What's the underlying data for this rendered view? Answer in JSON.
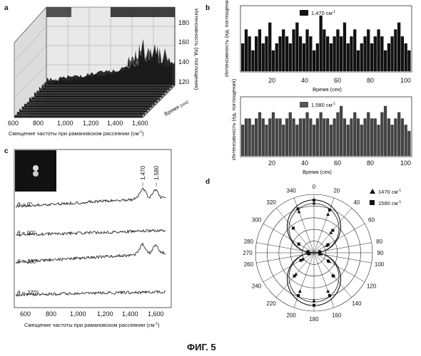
{
  "figure": {
    "caption": "ФИГ. 5",
    "panels": [
      "a",
      "b",
      "c",
      "d"
    ]
  },
  "panel_a": {
    "xlabel": "Смещение частоты при рамановском рассеянии (см",
    "xlabel_sup": "-1",
    "xlabel_end": ")",
    "xticks": [
      "600",
      "800",
      "1,000",
      "1,200",
      "1,400",
      "1,600"
    ],
    "zlabel": "Интенсивность (ед. поглощения)",
    "zticks": [
      "180",
      "160",
      "140",
      "120"
    ],
    "time_label": "Время",
    "time_unit": "(сек)"
  },
  "panel_b": {
    "ylabel": "Интенсивность (ед. поглощения)",
    "xlabel": "Время (сек)",
    "xticks": [
      "20",
      "40",
      "60",
      "80",
      "100"
    ],
    "legend_top": "1,470 см",
    "legend_bottom": "1,580 см",
    "legend_sup": "-1"
  },
  "panel_c": {
    "xlabel": "Смещение частоты при рамановском рассеянии (см",
    "xlabel_sup": "-1",
    "xlabel_end": ")",
    "xticks": [
      "600",
      "800",
      "1,000",
      "1,200",
      "1,400",
      "1,600"
    ],
    "peak_1": "1,470",
    "peak_2": "1,580",
    "angle_labels": [
      "θ = 0°",
      "θ = 90°",
      "θ = 180°",
      "θ = 270°"
    ]
  },
  "panel_d": {
    "legend_1470": "1470 см",
    "legend_1580": "1580 см",
    "legend_sup": "-1",
    "angle_ticks": [
      "0",
      "20",
      "40",
      "60",
      "80",
      "90",
      "100",
      "120",
      "140",
      "160",
      "180",
      "200",
      "220",
      "240",
      "260",
      "270",
      "280",
      "300",
      "320",
      "340"
    ]
  },
  "chart_data": [
    {
      "panel": "a",
      "type": "area",
      "title": "",
      "xlabel": "Смещение частоты при рамановском рассеянии (см-1)",
      "ylabel": "Время (сек)",
      "zlabel": "Интенсивность (ед. поглощения)",
      "xlim": [
        560,
        1680
      ],
      "zlim": [
        100,
        190
      ]
    },
    {
      "panel": "b",
      "type": "bar",
      "series": [
        {
          "name": "1,470 см-1",
          "values": [
            4,
            6,
            5,
            3,
            5,
            6,
            4,
            5,
            7,
            3,
            4,
            5,
            6,
            5,
            4,
            6,
            7,
            5,
            4,
            6,
            5,
            3,
            4,
            8,
            6,
            5,
            4,
            5,
            6,
            5,
            7,
            4,
            5,
            6,
            3,
            4,
            5,
            6,
            4,
            5,
            6,
            5,
            3,
            4,
            5,
            6,
            7,
            5,
            4,
            3
          ]
        },
        {
          "name": "1,580 см-1",
          "values": [
            5,
            6,
            6,
            5,
            6,
            7,
            6,
            5,
            6,
            7,
            6,
            6,
            5,
            6,
            7,
            6,
            5,
            6,
            6,
            7,
            6,
            5,
            6,
            7,
            6,
            6,
            5,
            6,
            7,
            8,
            6,
            5,
            6,
            7,
            6,
            5,
            6,
            7,
            6,
            6,
            5,
            7,
            8,
            6,
            5,
            6,
            7,
            6,
            5,
            4
          ]
        }
      ],
      "xlabel": "Время (сек)",
      "ylabel": "Интенсивность (ед. поглощения)",
      "xlim": [
        0,
        100
      ]
    },
    {
      "panel": "c",
      "type": "line",
      "xlabel": "Смещение частоты при рамановском рассеянии (см-1)",
      "xlim": [
        500,
        1700
      ],
      "series_names": [
        "θ = 0°",
        "θ = 90°",
        "θ = 180°",
        "θ = 270°"
      ]
    },
    {
      "panel": "d",
      "type": "scatter",
      "series": [
        {
          "name": "1470 см-1",
          "angles": [
            0,
            20,
            40,
            60,
            80,
            100,
            120,
            140,
            160,
            180,
            200,
            220,
            240,
            260,
            280,
            300,
            320,
            340
          ],
          "values": [
            0.85,
            0.7,
            0.45,
            0.25,
            0.1,
            0.12,
            0.3,
            0.5,
            0.7,
            0.82,
            0.7,
            0.48,
            0.22,
            0.08,
            0.12,
            0.3,
            0.55,
            0.75
          ]
        },
        {
          "name": "1580 см-1",
          "angles": [
            0,
            20,
            40,
            60,
            80,
            100,
            120,
            140,
            160,
            180,
            200,
            220,
            240,
            260,
            280,
            300,
            320,
            340
          ],
          "values": [
            0.9,
            0.78,
            0.5,
            0.28,
            0.1,
            0.1,
            0.28,
            0.52,
            0.78,
            0.9,
            0.78,
            0.52,
            0.26,
            0.1,
            0.1,
            0.3,
            0.55,
            0.8
          ]
        }
      ]
    }
  ]
}
